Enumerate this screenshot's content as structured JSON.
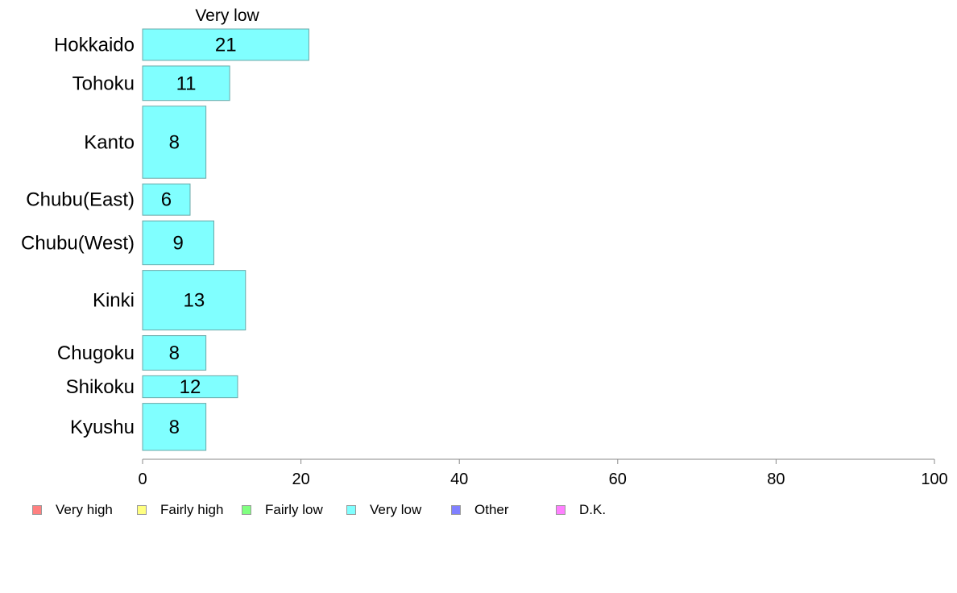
{
  "chart_data": {
    "type": "bar",
    "orientation": "horizontal",
    "column_title": "Very low",
    "categories": [
      "Hokkaido",
      "Tohoku",
      "Kanto",
      "Chubu(East)",
      "Chubu(West)",
      "Kinki",
      "Chugoku",
      "Shikoku",
      "Kyushu"
    ],
    "series": [
      {
        "name": "Very low",
        "values": [
          21,
          11,
          8,
          6,
          9,
          13,
          8,
          12,
          8
        ],
        "color": "#80ffff"
      }
    ],
    "bar_weights": [
      1.0,
      1.1,
      2.3,
      1.0,
      1.4,
      1.9,
      1.1,
      0.7,
      1.5
    ],
    "xlim": [
      0,
      100
    ],
    "xticks": [
      0,
      20,
      40,
      60,
      80,
      100
    ],
    "grid": false,
    "legend_position": "bottom",
    "legend": [
      {
        "label": "Very high",
        "color": "#ff8080"
      },
      {
        "label": "Fairly high",
        "color": "#ffff80"
      },
      {
        "label": "Fairly low",
        "color": "#80ff80"
      },
      {
        "label": "Very low",
        "color": "#80ffff"
      },
      {
        "label": "Other",
        "color": "#8080ff"
      },
      {
        "label": "D.K.",
        "color": "#ff80ff"
      }
    ]
  }
}
